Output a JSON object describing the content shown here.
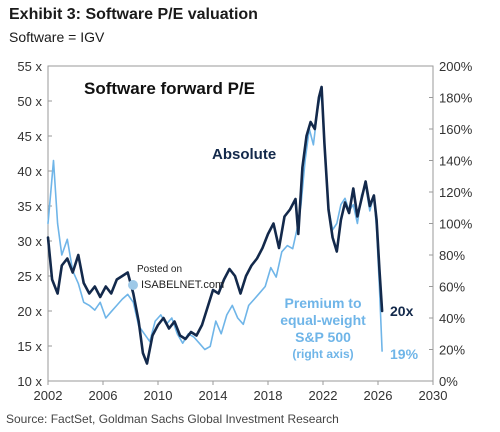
{
  "header": {
    "title": "Exhibit 3: Software P/E valuation",
    "subtitle": "Software = IGV"
  },
  "source": "Source: FactSet, Goldman Sachs Global Investment Research",
  "watermark": {
    "line1": "Posted on",
    "line2": "ISABELNET.com"
  },
  "chart_data": {
    "type": "line",
    "title": "Software forward P/E",
    "x_ticks": [
      "2002",
      "2006",
      "2010",
      "2014",
      "2018",
      "2022",
      "2026",
      "2030"
    ],
    "xlim": [
      2002,
      2030
    ],
    "y_left_ticks": [
      "10 x",
      "15 x",
      "20 x",
      "25 x",
      "30 x",
      "35 x",
      "40 x",
      "45 x",
      "50 x",
      "55 x"
    ],
    "ylim_left": [
      10,
      55
    ],
    "y_right_ticks": [
      "0%",
      "20%",
      "40%",
      "60%",
      "80%",
      "100%",
      "120%",
      "140%",
      "160%",
      "180%",
      "200%"
    ],
    "ylim_right": [
      0,
      200
    ],
    "grid": false,
    "series": [
      {
        "name": "Absolute",
        "axis": "left",
        "color": "#13294b",
        "end_label": "20x",
        "points": [
          [
            2002.0,
            30.5
          ],
          [
            2002.3,
            24.5
          ],
          [
            2002.7,
            22.5
          ],
          [
            2003.0,
            26.5
          ],
          [
            2003.4,
            27.5
          ],
          [
            2003.8,
            25.5
          ],
          [
            2004.2,
            28.0
          ],
          [
            2004.6,
            24.0
          ],
          [
            2005.0,
            22.5
          ],
          [
            2005.4,
            23.5
          ],
          [
            2005.8,
            22.0
          ],
          [
            2006.2,
            23.5
          ],
          [
            2006.6,
            22.5
          ],
          [
            2007.0,
            24.5
          ],
          [
            2007.4,
            25.0
          ],
          [
            2007.8,
            25.5
          ],
          [
            2008.2,
            22.5
          ],
          [
            2008.6,
            18.5
          ],
          [
            2008.9,
            14.0
          ],
          [
            2009.2,
            12.5
          ],
          [
            2009.6,
            16.5
          ],
          [
            2010.0,
            18.0
          ],
          [
            2010.4,
            19.0
          ],
          [
            2010.8,
            17.5
          ],
          [
            2011.2,
            18.5
          ],
          [
            2011.6,
            16.5
          ],
          [
            2012.0,
            16.0
          ],
          [
            2012.4,
            17.0
          ],
          [
            2012.8,
            16.5
          ],
          [
            2013.2,
            18.0
          ],
          [
            2013.6,
            20.5
          ],
          [
            2014.0,
            23.0
          ],
          [
            2014.4,
            22.5
          ],
          [
            2014.8,
            24.5
          ],
          [
            2015.2,
            26.0
          ],
          [
            2015.6,
            25.0
          ],
          [
            2016.0,
            22.5
          ],
          [
            2016.4,
            25.0
          ],
          [
            2016.8,
            26.5
          ],
          [
            2017.2,
            27.5
          ],
          [
            2017.6,
            29.0
          ],
          [
            2018.0,
            31.0
          ],
          [
            2018.4,
            32.5
          ],
          [
            2018.8,
            29.0
          ],
          [
            2019.2,
            33.5
          ],
          [
            2019.6,
            34.5
          ],
          [
            2020.0,
            36.0
          ],
          [
            2020.2,
            31.0
          ],
          [
            2020.5,
            40.5
          ],
          [
            2020.8,
            45.0
          ],
          [
            2021.1,
            47.0
          ],
          [
            2021.4,
            46.0
          ],
          [
            2021.7,
            50.5
          ],
          [
            2021.9,
            52.0
          ],
          [
            2022.1,
            44.0
          ],
          [
            2022.4,
            34.5
          ],
          [
            2022.7,
            30.5
          ],
          [
            2023.0,
            28.5
          ],
          [
            2023.3,
            33.0
          ],
          [
            2023.6,
            35.5
          ],
          [
            2023.9,
            34.0
          ],
          [
            2024.2,
            37.5
          ],
          [
            2024.5,
            33.5
          ],
          [
            2024.8,
            36.0
          ],
          [
            2025.1,
            38.5
          ],
          [
            2025.4,
            35.0
          ],
          [
            2025.7,
            36.5
          ],
          [
            2025.9,
            33.0
          ],
          [
            2026.1,
            26.0
          ],
          [
            2026.3,
            20.0
          ]
        ]
      },
      {
        "name": "Premium to equal-weight S&P 500",
        "axis": "right",
        "color": "#6fb5e8",
        "end_label": "19%",
        "label_lines": [
          "Premium to",
          "equal-weight",
          "S&P 500",
          "(right axis)"
        ],
        "points": [
          [
            2002.0,
            100
          ],
          [
            2002.2,
            120
          ],
          [
            2002.4,
            140
          ],
          [
            2002.7,
            100
          ],
          [
            2003.0,
            80
          ],
          [
            2003.4,
            90
          ],
          [
            2003.8,
            70
          ],
          [
            2004.2,
            62
          ],
          [
            2004.6,
            50
          ],
          [
            2005.0,
            48
          ],
          [
            2005.4,
            45
          ],
          [
            2005.8,
            50
          ],
          [
            2006.2,
            40
          ],
          [
            2006.6,
            44
          ],
          [
            2007.0,
            48
          ],
          [
            2007.4,
            52
          ],
          [
            2007.8,
            55
          ],
          [
            2008.2,
            50
          ],
          [
            2008.6,
            35
          ],
          [
            2009.0,
            30
          ],
          [
            2009.4,
            25
          ],
          [
            2009.8,
            38
          ],
          [
            2010.2,
            42
          ],
          [
            2010.6,
            36
          ],
          [
            2011.0,
            40
          ],
          [
            2011.4,
            30
          ],
          [
            2011.8,
            24
          ],
          [
            2012.2,
            30
          ],
          [
            2012.6,
            28
          ],
          [
            2013.0,
            24
          ],
          [
            2013.4,
            20
          ],
          [
            2013.8,
            22
          ],
          [
            2014.2,
            38
          ],
          [
            2014.6,
            30
          ],
          [
            2015.0,
            42
          ],
          [
            2015.4,
            48
          ],
          [
            2015.8,
            40
          ],
          [
            2016.2,
            36
          ],
          [
            2016.6,
            48
          ],
          [
            2017.0,
            52
          ],
          [
            2017.4,
            56
          ],
          [
            2017.8,
            60
          ],
          [
            2018.2,
            72
          ],
          [
            2018.6,
            66
          ],
          [
            2019.0,
            82
          ],
          [
            2019.4,
            86
          ],
          [
            2019.8,
            84
          ],
          [
            2020.1,
            96
          ],
          [
            2020.4,
            112
          ],
          [
            2020.7,
            140
          ],
          [
            2021.0,
            160
          ],
          [
            2021.3,
            150
          ],
          [
            2021.6,
            172
          ],
          [
            2021.9,
            185
          ],
          [
            2022.1,
            150
          ],
          [
            2022.4,
            110
          ],
          [
            2022.7,
            96
          ],
          [
            2023.0,
            100
          ],
          [
            2023.3,
            112
          ],
          [
            2023.6,
            116
          ],
          [
            2023.9,
            108
          ],
          [
            2024.2,
            112
          ],
          [
            2024.5,
            100
          ],
          [
            2024.8,
            118
          ],
          [
            2025.1,
            124
          ],
          [
            2025.4,
            108
          ],
          [
            2025.7,
            118
          ],
          [
            2025.9,
            96
          ],
          [
            2026.1,
            60
          ],
          [
            2026.3,
            19
          ]
        ]
      }
    ]
  }
}
